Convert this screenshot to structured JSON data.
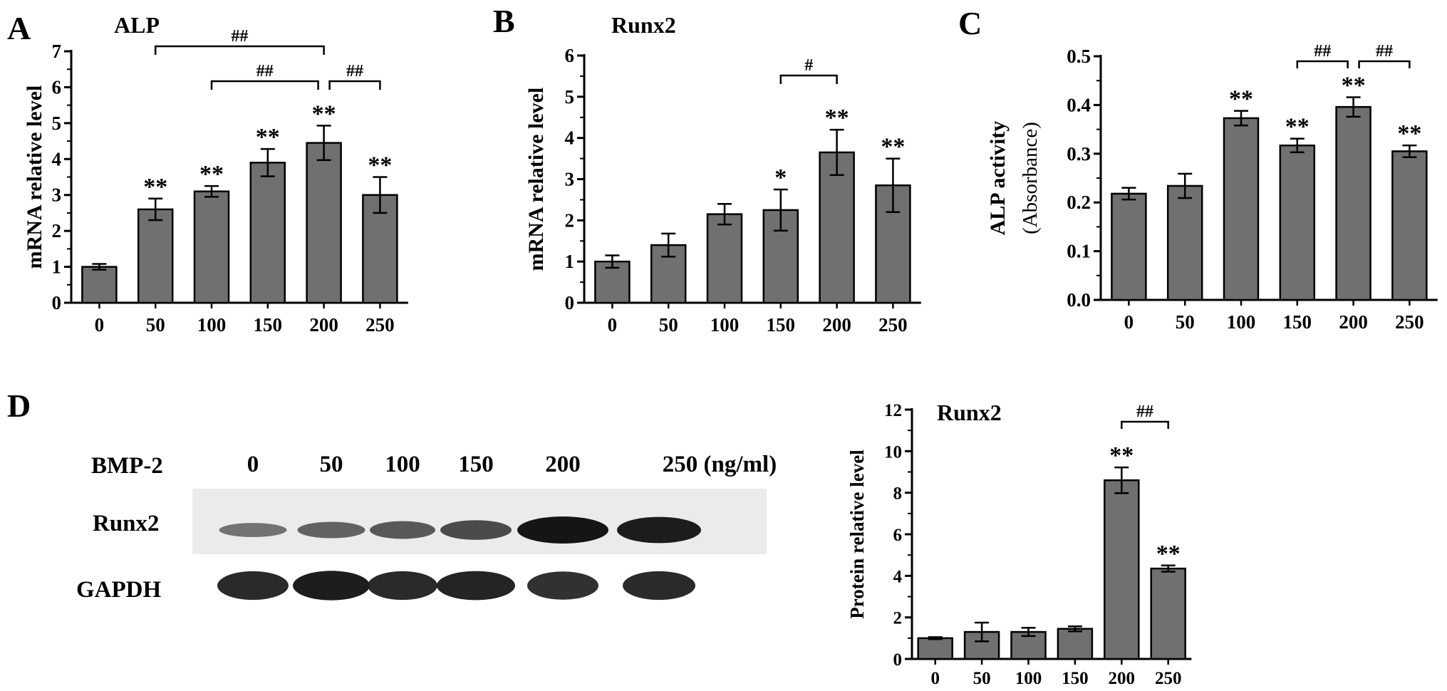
{
  "panels": {
    "A": "A",
    "B": "B",
    "C": "C",
    "D": "D"
  },
  "colors": {
    "bar": "#707070",
    "axis": "#000000",
    "background": "#ffffff"
  },
  "chart_data": [
    {
      "panel": "A",
      "type": "bar",
      "title": "ALP",
      "ylabel": "mRNA relative level",
      "xlabel": "",
      "categories": [
        "0",
        "50",
        "100",
        "150",
        "200",
        "250"
      ],
      "values": [
        1.0,
        2.6,
        3.1,
        3.9,
        4.45,
        3.0
      ],
      "errors": [
        0.08,
        0.3,
        0.15,
        0.38,
        0.48,
        0.5
      ],
      "ylim": [
        0,
        7
      ],
      "yticks": [
        "0",
        "1",
        "2",
        "3",
        "4",
        "5",
        "6",
        "7"
      ],
      "annotations": [
        "",
        "**",
        "**",
        "**",
        "**",
        "**"
      ],
      "comparisons": [
        {
          "from": "50",
          "to": "200",
          "label": "##"
        },
        {
          "from": "100",
          "to": "200",
          "label": "##"
        },
        {
          "from": "200",
          "to": "250",
          "label": "##"
        }
      ]
    },
    {
      "panel": "B",
      "type": "bar",
      "title": "Runx2",
      "ylabel": "mRNA relative level",
      "xlabel": "",
      "categories": [
        "0",
        "50",
        "100",
        "150",
        "200",
        "250"
      ],
      "values": [
        1.0,
        1.4,
        2.15,
        2.25,
        3.65,
        2.85
      ],
      "errors": [
        0.15,
        0.28,
        0.25,
        0.5,
        0.55,
        0.65
      ],
      "ylim": [
        0,
        6
      ],
      "yticks": [
        "0",
        "1",
        "2",
        "3",
        "4",
        "5",
        "6"
      ],
      "annotations": [
        "",
        "",
        "",
        "*",
        "**",
        "**"
      ],
      "comparisons": [
        {
          "from": "150",
          "to": "200",
          "label": "#"
        }
      ]
    },
    {
      "panel": "C",
      "type": "bar",
      "title": "",
      "ylabel": "ALP activity",
      "ylabel2": "(Absorbance)",
      "xlabel": "",
      "categories": [
        "0",
        "50",
        "100",
        "150",
        "200",
        "250"
      ],
      "values": [
        0.218,
        0.234,
        0.373,
        0.317,
        0.396,
        0.305
      ],
      "errors": [
        0.012,
        0.025,
        0.015,
        0.014,
        0.02,
        0.012
      ],
      "ylim": [
        0,
        0.5
      ],
      "yticks": [
        "0.0",
        "0.1",
        "0.2",
        "0.3",
        "0.4",
        "0.5"
      ],
      "annotations": [
        "",
        "",
        "**",
        "**",
        "**",
        "**"
      ],
      "comparisons": [
        {
          "from": "150",
          "to": "200",
          "label": "##"
        },
        {
          "from": "200",
          "to": "250",
          "label": "##"
        }
      ]
    },
    {
      "panel": "D",
      "type": "bar",
      "title": "Runx2",
      "ylabel": "Protein relative level",
      "xlabel": "",
      "categories": [
        "0",
        "50",
        "100",
        "150",
        "200",
        "250"
      ],
      "values": [
        1.0,
        1.3,
        1.3,
        1.45,
        8.6,
        4.35
      ],
      "errors": [
        0.05,
        0.45,
        0.2,
        0.12,
        0.62,
        0.15
      ],
      "ylim": [
        0,
        12
      ],
      "yticks": [
        "0",
        "2",
        "4",
        "6",
        "8",
        "10",
        "12"
      ],
      "annotations": [
        "",
        "",
        "",
        "",
        "**",
        "**"
      ],
      "comparisons": [
        {
          "from": "200",
          "to": "250",
          "label": "##"
        }
      ]
    }
  ],
  "blot": {
    "header_label": "BMP-2",
    "lanes": [
      "0",
      "50",
      "100",
      "150",
      "200",
      "250 (ng/ml)"
    ],
    "rows": [
      {
        "label": "Runx2",
        "intensity": [
          0.3,
          0.42,
          0.5,
          0.6,
          1.0,
          0.95
        ]
      },
      {
        "label": "GAPDH",
        "intensity": [
          0.85,
          0.95,
          0.85,
          0.9,
          0.8,
          0.85
        ]
      }
    ]
  }
}
